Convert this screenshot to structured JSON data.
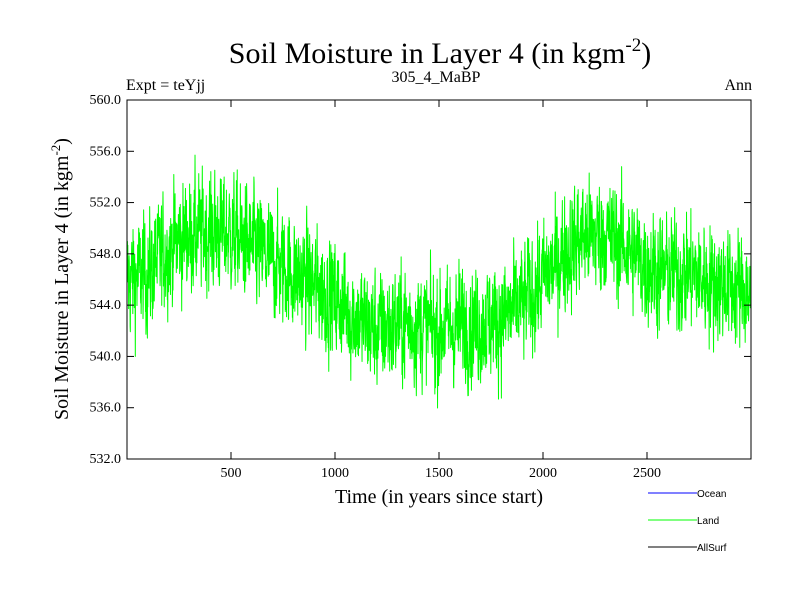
{
  "header": {
    "title_main": "Soil Moisture in Layer 4 (in kgm",
    "title_sup": "-2",
    "title_close": ")",
    "left": "Expt = teYjj",
    "center": "305_4_MaBP",
    "right": "Ann"
  },
  "colors": {
    "ocean": "#0000ff",
    "land": "#00ff00",
    "allsurf": "#000000"
  },
  "chart_data": {
    "type": "line",
    "title": "Soil Moisture in Layer 4 (in kgm-2)",
    "xlabel": "Time (in years since start)",
    "ylabel_main": "Soil Moisture in Layer 4 (in kgm",
    "ylabel_sup": "-2",
    "ylabel_close": ")",
    "xlim": [
      0,
      3000
    ],
    "ylim": [
      532.0,
      560.0
    ],
    "x_ticks": [
      500,
      1000,
      1500,
      2000,
      2500
    ],
    "x_tick_labels": [
      "500",
      "1000",
      "1500",
      "2000",
      "2500"
    ],
    "y_ticks": [
      532,
      536,
      540,
      544,
      548,
      552,
      556,
      560
    ],
    "y_tick_labels": [
      "532.0",
      "536.0",
      "540.0",
      "544.0",
      "548.0",
      "552.0",
      "556.0",
      "560.0"
    ],
    "trend": {
      "x": [
        0,
        100,
        200,
        300,
        400,
        500,
        600,
        700,
        800,
        900,
        1000,
        1100,
        1200,
        1300,
        1400,
        1500,
        1600,
        1700,
        1800,
        1900,
        2000,
        2100,
        2200,
        2300,
        2400,
        2500,
        2600,
        2700,
        2800,
        2900,
        3000
      ],
      "y": [
        546.0,
        546.5,
        548.5,
        549.5,
        549.8,
        549.5,
        548.5,
        547.5,
        546.5,
        545.5,
        544.5,
        543.0,
        542.0,
        542.5,
        542.5,
        542.0,
        542.5,
        542.5,
        543.0,
        544.0,
        546.0,
        548.0,
        549.5,
        549.5,
        548.5,
        547.0,
        546.5,
        546.5,
        546.0,
        545.5,
        545.0
      ]
    },
    "noise_amplitude": 2.8,
    "series": [
      {
        "name": "Ocean",
        "color": "#0000ff",
        "visible": false
      },
      {
        "name": "Land",
        "color": "#00ff00",
        "visible": true
      },
      {
        "name": "AllSurf",
        "color": "#000000",
        "visible": false
      }
    ]
  }
}
